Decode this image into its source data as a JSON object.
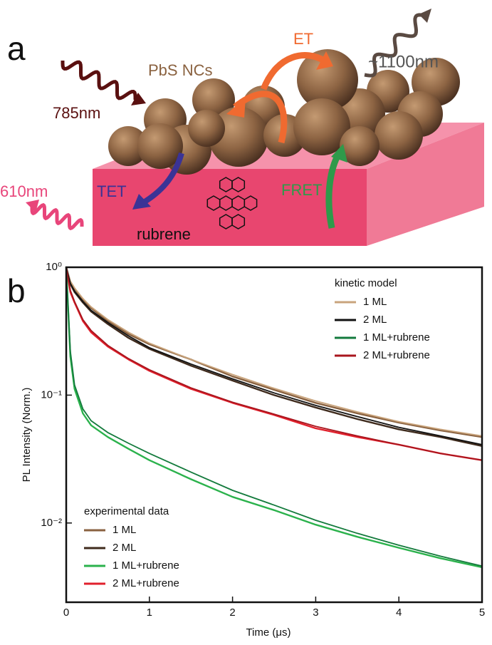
{
  "diagram": {
    "panel_label": "a",
    "nanocrystals": "PbS NCs",
    "et": "ET",
    "emission_pbs": "~1100nm",
    "excitation": "785nm",
    "emission_rubrene": "610nm",
    "tet": "TET",
    "fret": "FRET",
    "substrate": "rubrene"
  },
  "chart_data": {
    "type": "line",
    "panel_label": "b",
    "x_label": "Time (μs)",
    "y_label": "PL Intensity (Norm.)",
    "log_y": true,
    "xlim": [
      0,
      5
    ],
    "xticks": [
      0,
      1,
      2,
      3,
      4,
      5
    ],
    "ylim": [
      0.0024,
      1
    ],
    "yticks": [
      {
        "value": 1,
        "label": "10⁰"
      },
      {
        "value": 0.1,
        "label": "10⁻¹"
      },
      {
        "value": 0.01,
        "label": "10⁻²"
      }
    ],
    "x": [
      0,
      0.05,
      0.1,
      0.2,
      0.3,
      0.5,
      0.75,
      1,
      1.5,
      2,
      2.5,
      3,
      3.5,
      4,
      4.5,
      5
    ],
    "legend_title": "experimental data",
    "series": [
      {
        "name": "1 ML",
        "color": "#8a6240",
        "values": [
          1,
          0.77,
          0.68,
          0.56,
          0.48,
          0.38,
          0.3,
          0.25,
          0.19,
          0.14,
          0.11,
          0.087,
          0.072,
          0.061,
          0.053,
          0.047
        ]
      },
      {
        "name": "2 ML",
        "color": "#3f2b1d",
        "values": [
          1,
          0.74,
          0.64,
          0.53,
          0.45,
          0.36,
          0.28,
          0.23,
          0.17,
          0.13,
          0.1,
          0.08,
          0.065,
          0.054,
          0.047,
          0.04
        ]
      },
      {
        "name": "1 ML+rubrene",
        "color": "#2bb24c",
        "values": [
          1,
          0.2,
          0.112,
          0.072,
          0.058,
          0.047,
          0.038,
          0.031,
          0.022,
          0.016,
          0.0126,
          0.0097,
          0.0078,
          0.0064,
          0.0053,
          0.0045
        ]
      },
      {
        "name": "2 ML+rubrene",
        "color": "#e1202c",
        "values": [
          1,
          0.64,
          0.53,
          0.38,
          0.31,
          0.24,
          0.19,
          0.155,
          0.112,
          0.087,
          0.07,
          0.055,
          0.047,
          0.041,
          0.035,
          0.031
        ]
      }
    ],
    "model_legend_title": "kinetic model",
    "model_series": [
      {
        "name": "1 ML",
        "color": "#c9a47c",
        "values": [
          1,
          0.78,
          0.69,
          0.57,
          0.49,
          0.39,
          0.31,
          0.255,
          0.19,
          0.145,
          0.113,
          0.09,
          0.074,
          0.062,
          0.054,
          0.048
        ]
      },
      {
        "name": "2 ML",
        "color": "#111111",
        "values": [
          1,
          0.75,
          0.65,
          0.54,
          0.46,
          0.37,
          0.29,
          0.235,
          0.175,
          0.134,
          0.104,
          0.083,
          0.068,
          0.056,
          0.048,
          0.041
        ]
      },
      {
        "name": "1 ML+rubrene",
        "color": "#137a3c",
        "values": [
          1,
          0.22,
          0.12,
          0.078,
          0.063,
          0.051,
          0.042,
          0.035,
          0.025,
          0.018,
          0.0138,
          0.0105,
          0.0083,
          0.0067,
          0.0055,
          0.0046
        ]
      },
      {
        "name": "2 ML+rubrene",
        "color": "#a8151d",
        "values": [
          1,
          0.66,
          0.54,
          0.39,
          0.32,
          0.245,
          0.193,
          0.158,
          0.114,
          0.088,
          0.071,
          0.057,
          0.048,
          0.041,
          0.035,
          0.031
        ]
      }
    ]
  }
}
